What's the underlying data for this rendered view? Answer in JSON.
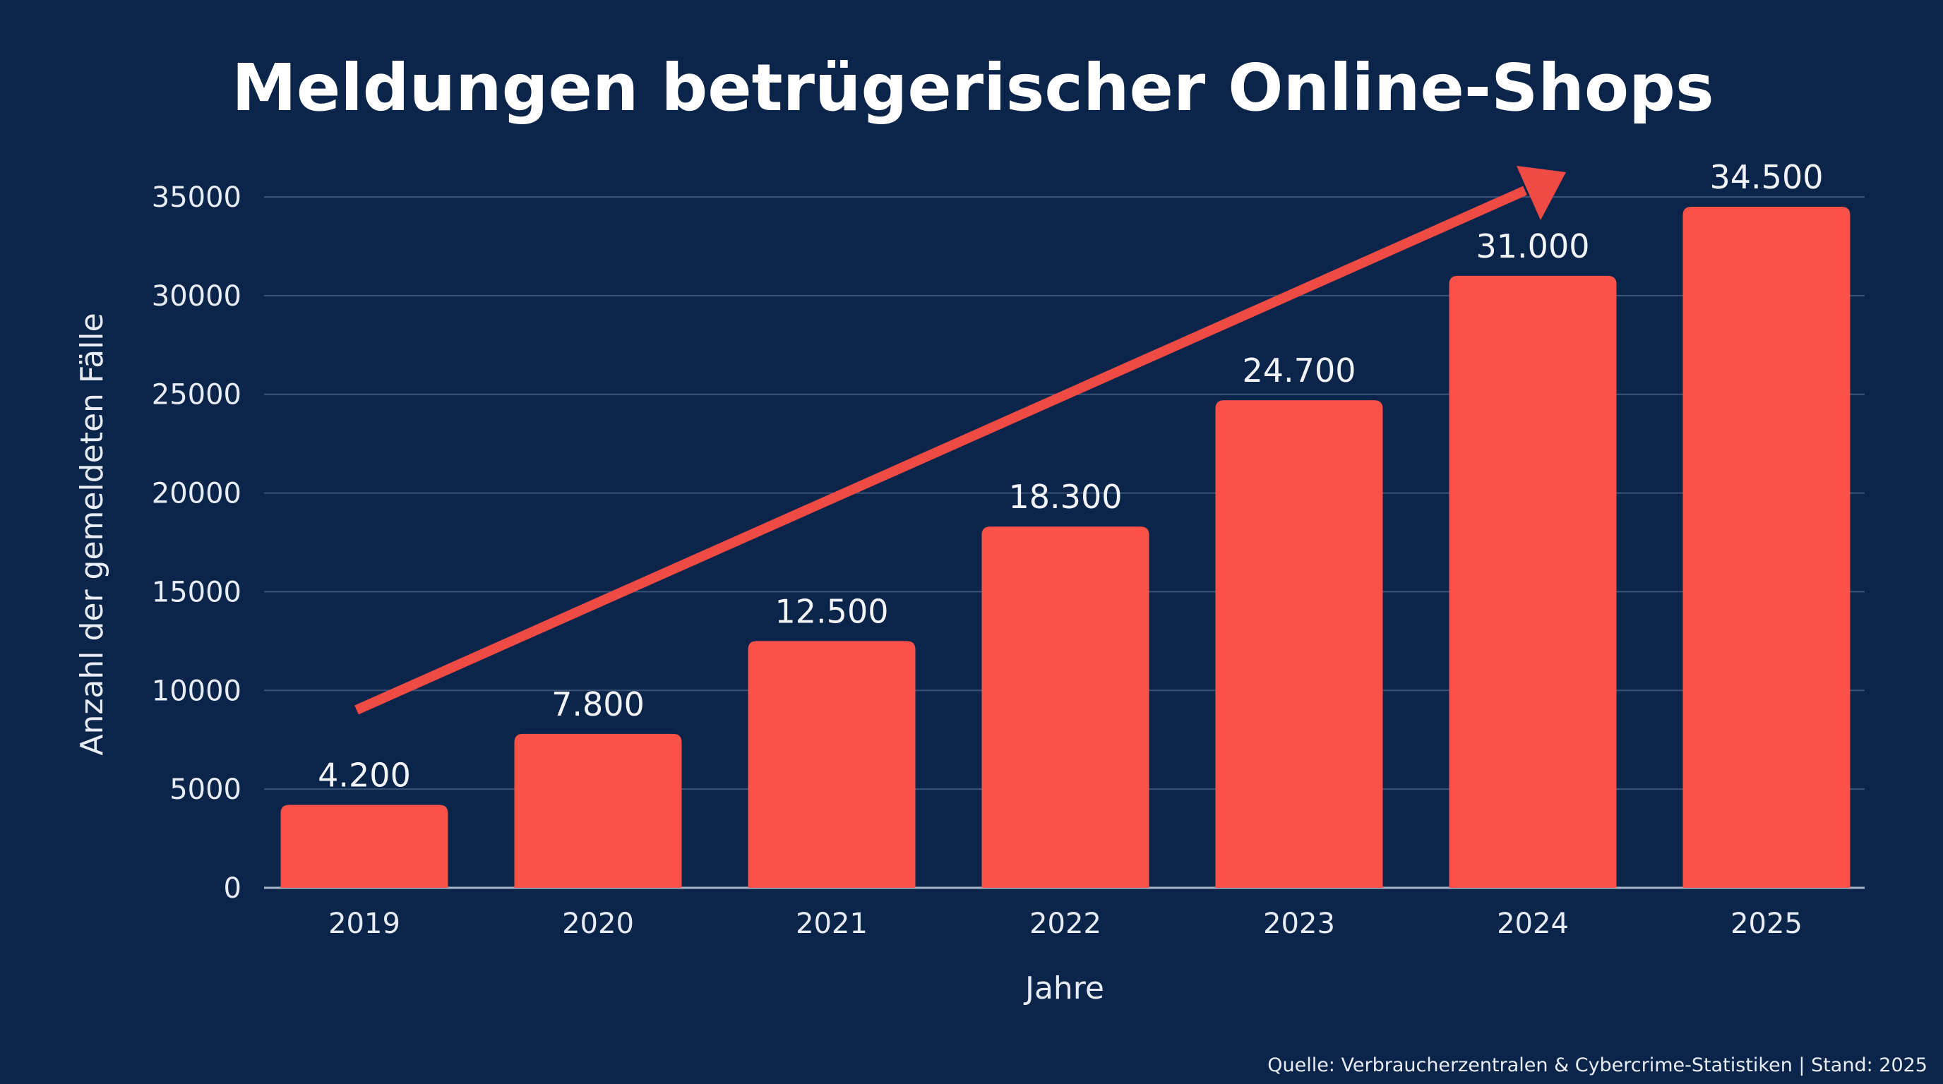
{
  "chart_data": {
    "type": "bar",
    "title": "Meldungen betrügerischer Online-Shops",
    "xlabel": "Jahre",
    "ylabel": "Anzahl der gemeldeten Fälle",
    "categories": [
      "2019",
      "2020",
      "2021",
      "2022",
      "2023",
      "2024",
      "2025"
    ],
    "values": [
      4200,
      7800,
      12500,
      18300,
      24700,
      31000,
      34500
    ],
    "data_labels": [
      "4.200",
      "7.800",
      "12.500",
      "18.300",
      "24.700",
      "31.000",
      "34.500"
    ],
    "ylim": [
      0,
      35000
    ],
    "yticks": [
      0,
      5000,
      10000,
      15000,
      20000,
      25000,
      30000,
      35000
    ],
    "ytick_labels": [
      "0",
      "5000",
      "10000",
      "15000",
      "20000",
      "25000",
      "30000",
      "35000"
    ],
    "grid": true,
    "trend_arrow": true,
    "colors": {
      "background": "#0b2449",
      "bar": "#fa5249",
      "arrow": "#f04a44",
      "grid": "#3a5275",
      "text": "#ffffff"
    },
    "source": "Quelle: Verbraucherzentralen & Cybercrime-Statistiken | Stand: 2025"
  }
}
